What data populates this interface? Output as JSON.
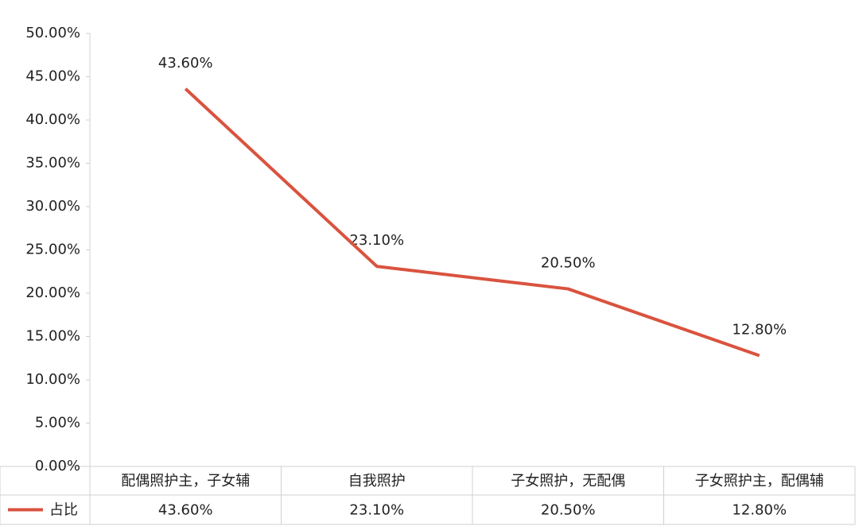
{
  "chart_data": {
    "type": "line",
    "categories": [
      "配偶照护主，子女辅",
      "自我照护",
      "子女照护，无配偶",
      "子女照护主，配偶辅"
    ],
    "series": [
      {
        "name": "占比",
        "color": "#d9533f",
        "values": [
          43.6,
          23.1,
          20.5,
          12.8
        ],
        "value_labels": [
          "43.60%",
          "23.10%",
          "20.50%",
          "12.80%"
        ]
      }
    ],
    "ylim": [
      0,
      50
    ],
    "yticks": [
      {
        "value": 0,
        "label": "0.00%"
      },
      {
        "value": 5,
        "label": "5.00%"
      },
      {
        "value": 10,
        "label": "10.00%"
      },
      {
        "value": 15,
        "label": "15.00%"
      },
      {
        "value": 20,
        "label": "20.00%"
      },
      {
        "value": 25,
        "label": "25.00%"
      },
      {
        "value": 30,
        "label": "30.00%"
      },
      {
        "value": 35,
        "label": "35.00%"
      },
      {
        "value": 40,
        "label": "40.00%"
      },
      {
        "value": 45,
        "label": "45.00%"
      },
      {
        "value": 50,
        "label": "50.00%"
      }
    ],
    "grid": false
  }
}
